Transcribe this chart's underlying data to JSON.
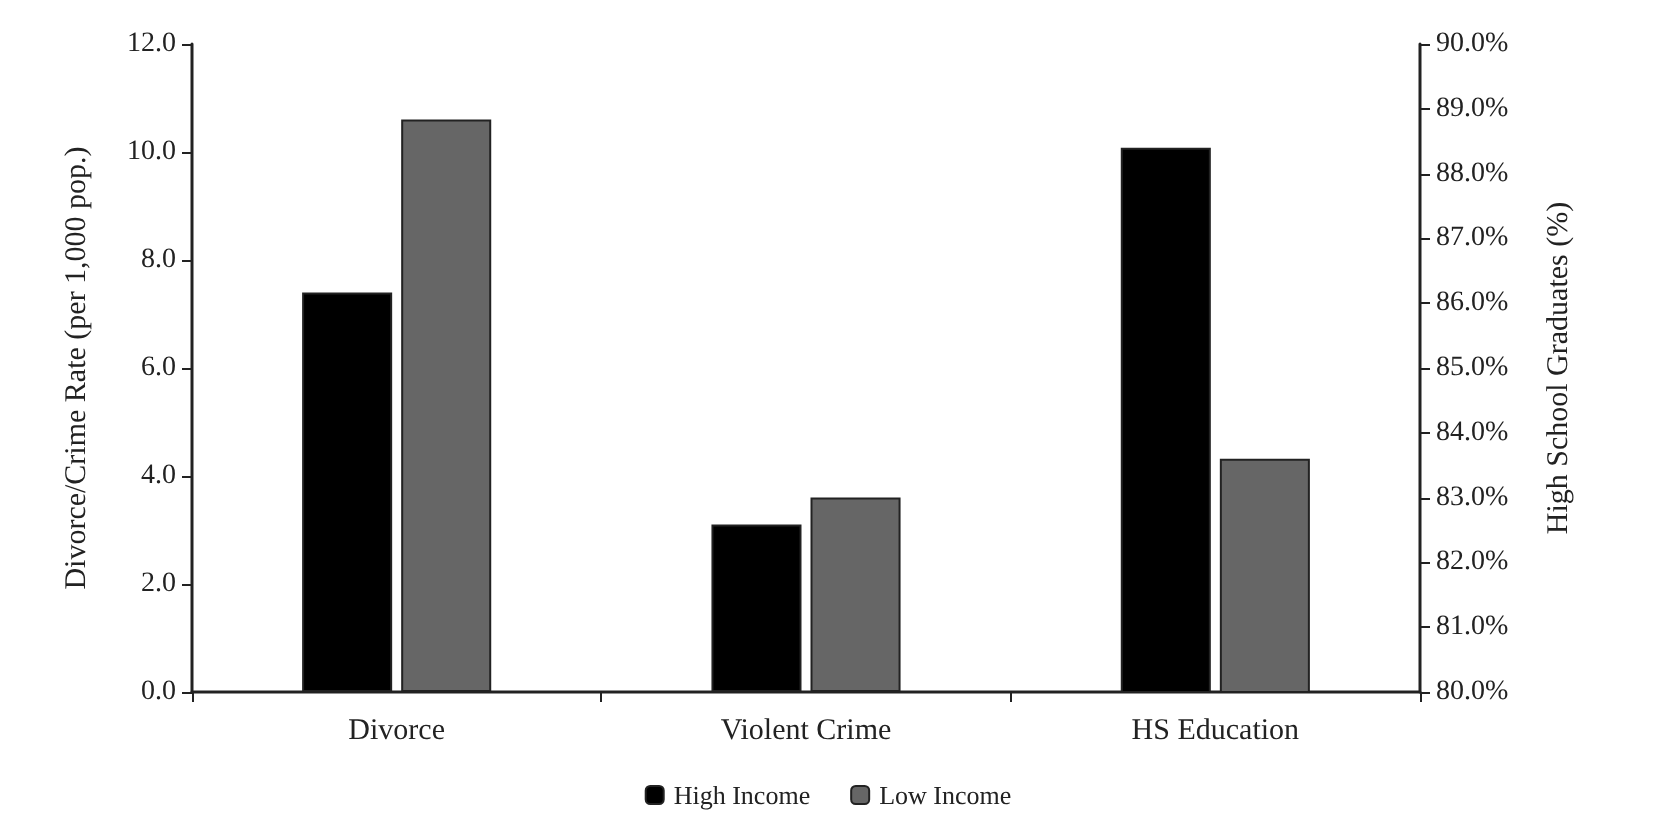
{
  "chart_data": {
    "type": "bar",
    "categories": [
      "Divorce",
      "Violent Crime",
      "HS Education"
    ],
    "ylabel": "Divorce/Crime Rate (per 1,000 pop.)",
    "y2label": "High School Graduates (%)",
    "series": [
      {
        "name": "High Income",
        "color": "#000000",
        "values": [
          7.4,
          3.1,
          null
        ]
      },
      {
        "name": "Low Income",
        "color": "#666666",
        "values": [
          10.6,
          3.6,
          null
        ]
      },
      {
        "color": "#000000",
        "axis": "y2",
        "values": [
          null,
          null,
          88.4
        ]
      },
      {
        "color": "#666666",
        "axis": "y2",
        "values": [
          null,
          null,
          83.6
        ]
      }
    ],
    "ylim": [
      0,
      12
    ],
    "yticks": [
      {
        "value": 0,
        "label": "0.0"
      },
      {
        "value": 2,
        "label": "2.0"
      },
      {
        "value": 4,
        "label": "4.0"
      },
      {
        "value": 6,
        "label": "6.0"
      },
      {
        "value": 8,
        "label": "8.0"
      },
      {
        "value": 10,
        "label": "10.0"
      },
      {
        "value": 12,
        "label": "12.0"
      }
    ],
    "y2lim": [
      80,
      90
    ],
    "y2ticks": [
      {
        "value": 80,
        "label": "80.0%"
      },
      {
        "value": 81,
        "label": "81.0%"
      },
      {
        "value": 82,
        "label": "82.0%"
      },
      {
        "value": 83,
        "label": "83.0%"
      },
      {
        "value": 84,
        "label": "84.0%"
      },
      {
        "value": 85,
        "label": "85.0%"
      },
      {
        "value": 86,
        "label": "86.0%"
      },
      {
        "value": 87,
        "label": "87.0%"
      },
      {
        "value": 88,
        "label": "88.0%"
      },
      {
        "value": 89,
        "label": "89.0%"
      },
      {
        "value": 90,
        "label": "90.0%"
      }
    ],
    "grid": false,
    "legend": "bottom"
  }
}
